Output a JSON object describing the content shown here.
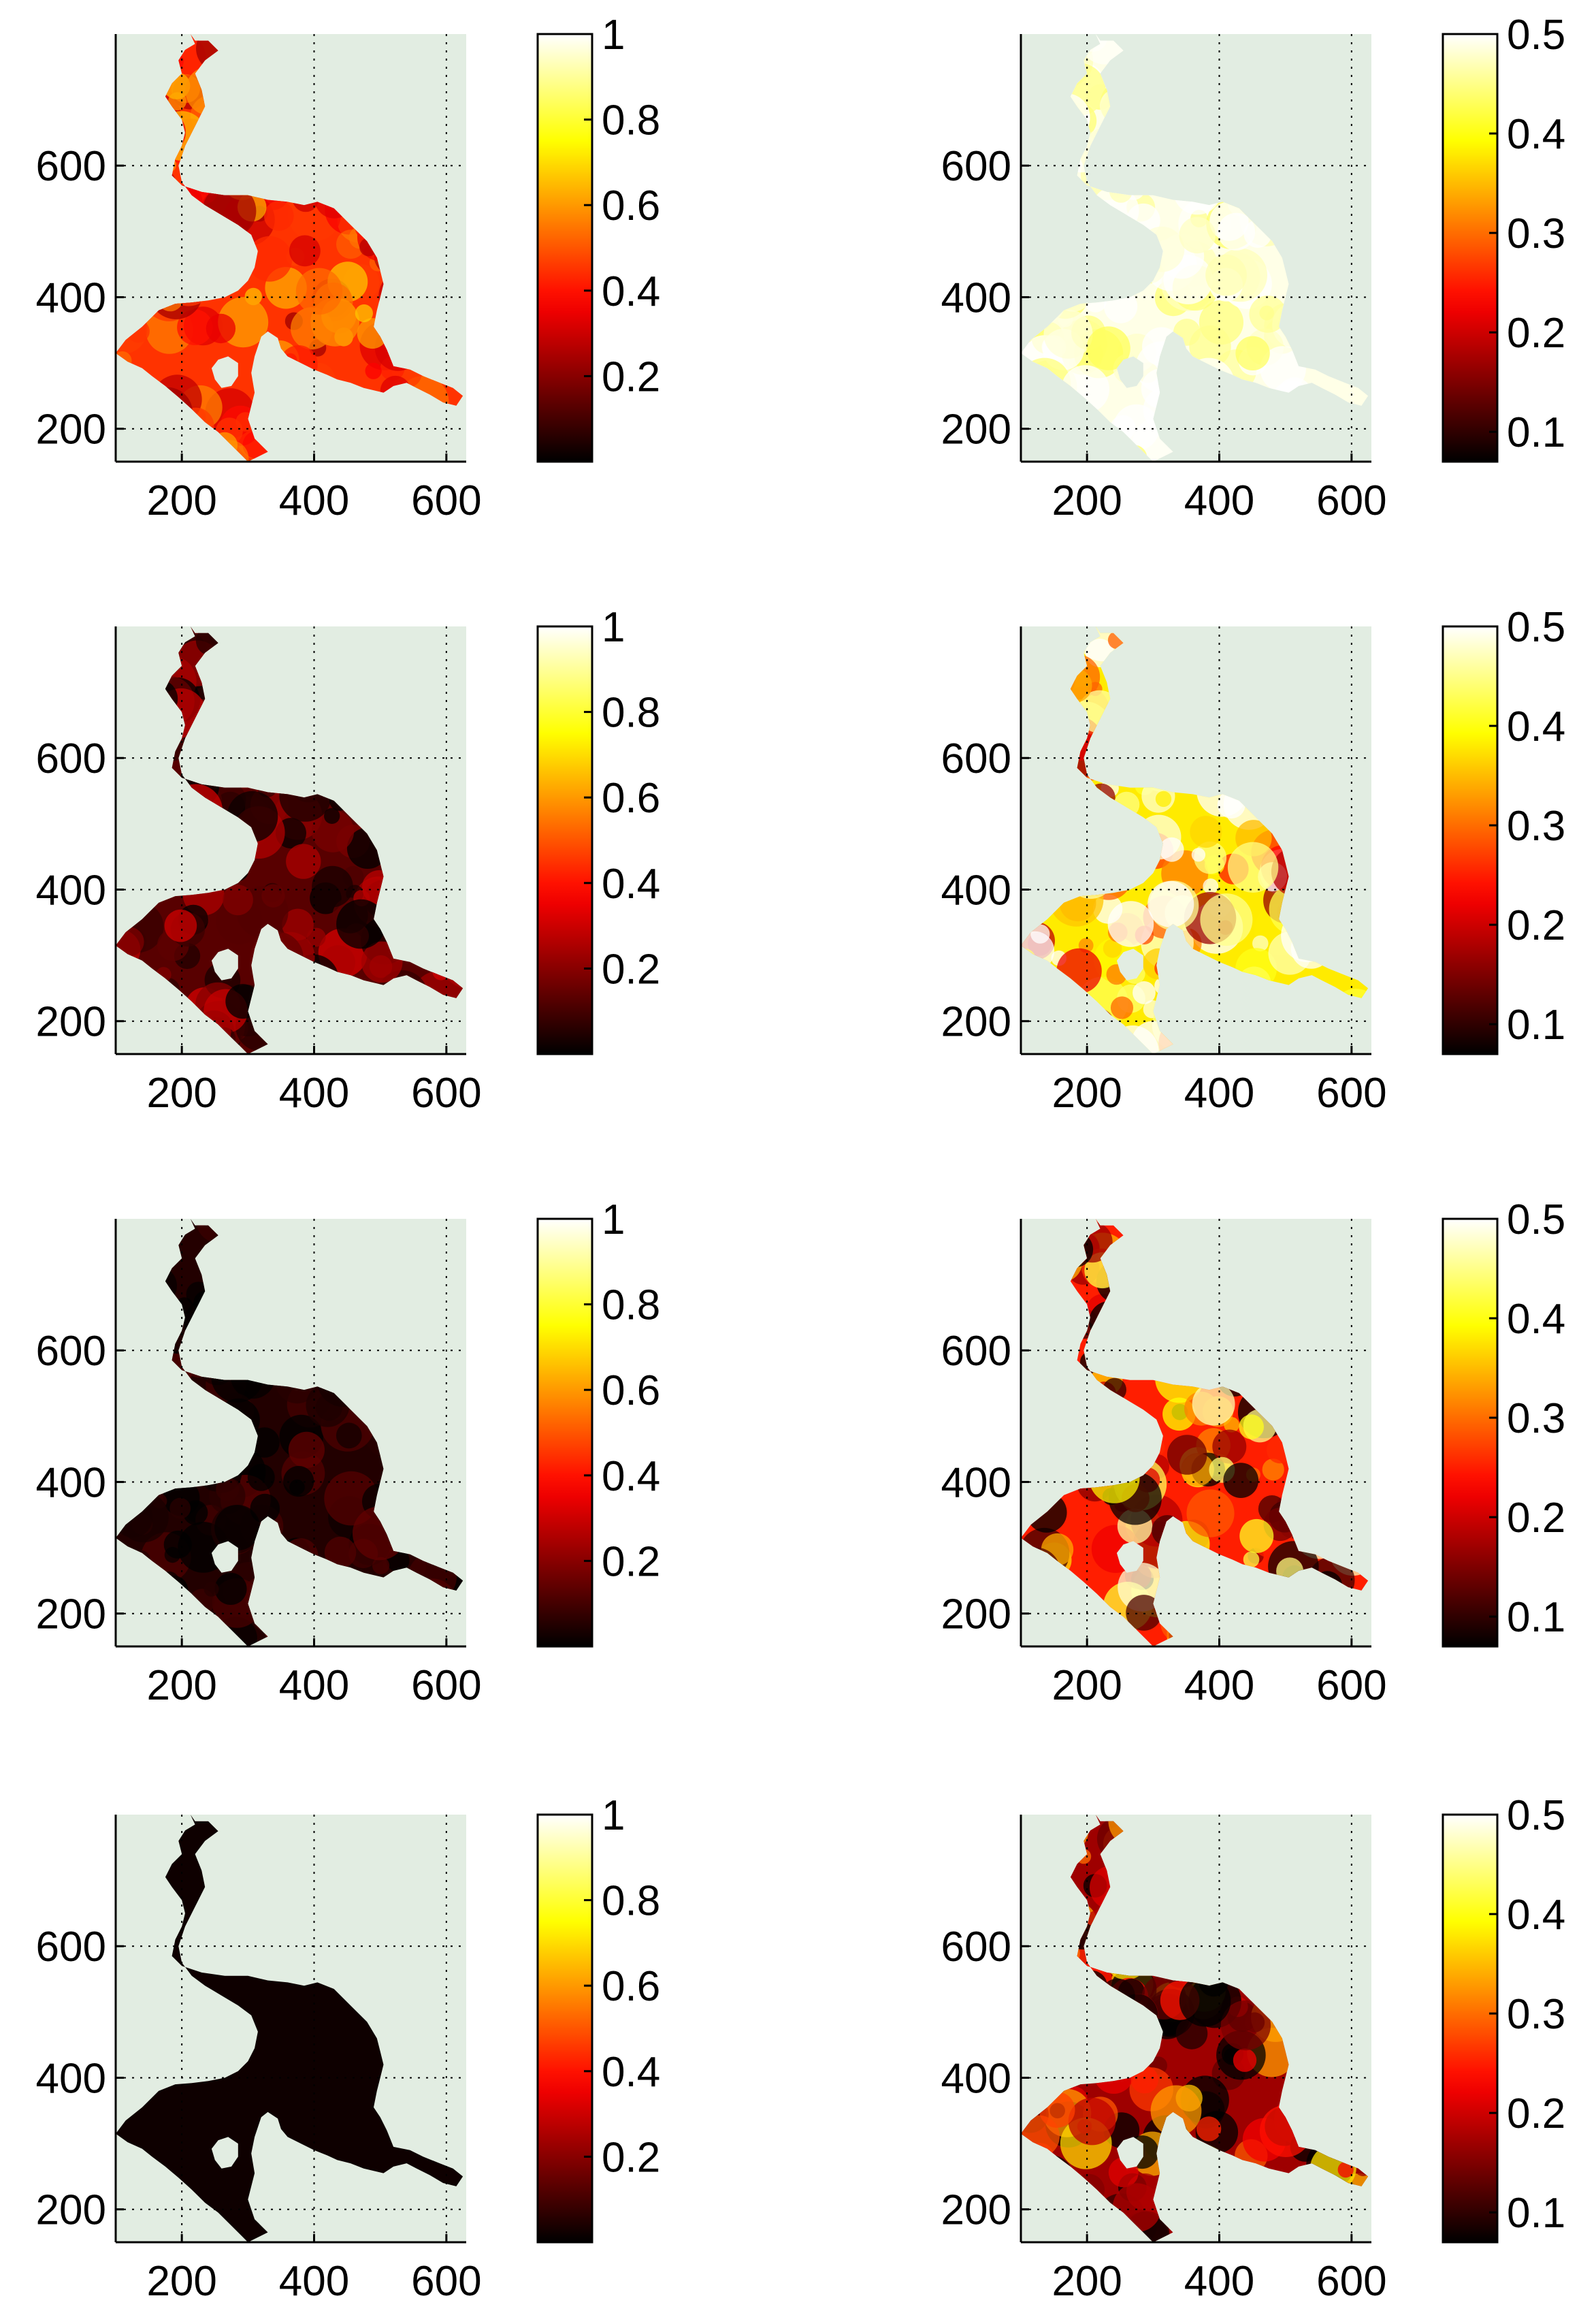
{
  "chart_data": [
    {
      "type": "heatmap",
      "panel": "row1-left",
      "xlim": [
        100,
        630
      ],
      "ylim": [
        150,
        800
      ],
      "xticks": [
        200,
        400,
        600
      ],
      "yticks": [
        200,
        400,
        600
      ],
      "grid": true,
      "background": "#e2ede2",
      "colormap": "hot",
      "clim": [
        0,
        1
      ],
      "colorbar_ticks": [
        "1",
        "0.8",
        "0.6",
        "0.4",
        "0.2"
      ],
      "colorbar_tick_values": [
        1,
        0.8,
        0.6,
        0.4,
        0.2
      ],
      "field_mean": 0.45,
      "field_spread": 0.14
    },
    {
      "type": "heatmap",
      "panel": "row1-right",
      "xlim": [
        100,
        630
      ],
      "ylim": [
        150,
        800
      ],
      "xticks": [
        200,
        400,
        600
      ],
      "yticks": [
        200,
        400,
        600
      ],
      "grid": true,
      "background": "#e2ede2",
      "colormap": "hot",
      "clim": [
        0.07,
        0.5
      ],
      "colorbar_ticks": [
        "0.5",
        "0.4",
        "0.3",
        "0.2",
        "0.1"
      ],
      "colorbar_tick_values": [
        0.5,
        0.4,
        0.3,
        0.2,
        0.1
      ],
      "field_mean": 0.49,
      "field_spread": 0.04
    },
    {
      "type": "heatmap",
      "panel": "row2-left",
      "xlim": [
        100,
        630
      ],
      "ylim": [
        150,
        800
      ],
      "xticks": [
        200,
        400,
        600
      ],
      "yticks": [
        200,
        400,
        600
      ],
      "grid": true,
      "background": "#e2ede2",
      "colormap": "hot",
      "clim": [
        0,
        1
      ],
      "colorbar_ticks": [
        "1",
        "0.8",
        "0.6",
        "0.4",
        "0.2"
      ],
      "colorbar_tick_values": [
        1,
        0.8,
        0.6,
        0.4,
        0.2
      ],
      "field_mean": 0.13,
      "field_spread": 0.12
    },
    {
      "type": "heatmap",
      "panel": "row2-right",
      "xlim": [
        100,
        630
      ],
      "ylim": [
        150,
        800
      ],
      "xticks": [
        200,
        400,
        600
      ],
      "yticks": [
        200,
        400,
        600
      ],
      "grid": true,
      "background": "#e2ede2",
      "colormap": "hot",
      "clim": [
        0.07,
        0.5
      ],
      "colorbar_ticks": [
        "0.5",
        "0.4",
        "0.3",
        "0.2",
        "0.1"
      ],
      "colorbar_tick_values": [
        0.5,
        0.4,
        0.3,
        0.2,
        0.1
      ],
      "field_mean": 0.38,
      "field_spread": 0.14
    },
    {
      "type": "heatmap",
      "panel": "row3-left",
      "xlim": [
        100,
        630
      ],
      "ylim": [
        150,
        800
      ],
      "xticks": [
        200,
        400,
        600
      ],
      "yticks": [
        200,
        400,
        600
      ],
      "grid": true,
      "background": "#e2ede2",
      "colormap": "hot",
      "clim": [
        0,
        1
      ],
      "colorbar_ticks": [
        "1",
        "0.8",
        "0.6",
        "0.4",
        "0.2"
      ],
      "colorbar_tick_values": [
        1,
        0.8,
        0.6,
        0.4,
        0.2
      ],
      "field_mean": 0.05,
      "field_spread": 0.06
    },
    {
      "type": "heatmap",
      "panel": "row3-right",
      "xlim": [
        100,
        630
      ],
      "ylim": [
        150,
        800
      ],
      "xticks": [
        200,
        400,
        600
      ],
      "yticks": [
        200,
        400,
        600
      ],
      "grid": true,
      "background": "#e2ede2",
      "colormap": "hot",
      "clim": [
        0.07,
        0.5
      ],
      "colorbar_ticks": [
        "0.5",
        "0.4",
        "0.3",
        "0.2",
        "0.1"
      ],
      "colorbar_tick_values": [
        0.5,
        0.4,
        0.3,
        0.2,
        0.1
      ],
      "field_mean": 0.25,
      "field_spread": 0.15
    },
    {
      "type": "heatmap",
      "panel": "row4-left",
      "xlim": [
        100,
        630
      ],
      "ylim": [
        150,
        800
      ],
      "xticks": [
        200,
        400,
        600
      ],
      "yticks": [
        200,
        400,
        600
      ],
      "grid": true,
      "background": "#e2ede2",
      "colormap": "hot",
      "clim": [
        0,
        1
      ],
      "colorbar_ticks": [
        "1",
        "0.8",
        "0.6",
        "0.4",
        "0.2"
      ],
      "colorbar_tick_values": [
        1,
        0.8,
        0.6,
        0.4,
        0.2
      ],
      "field_mean": 0.02,
      "field_spread": 0.0
    },
    {
      "type": "heatmap",
      "panel": "row4-right",
      "xlim": [
        100,
        630
      ],
      "ylim": [
        150,
        800
      ],
      "xticks": [
        200,
        400,
        600
      ],
      "yticks": [
        200,
        400,
        600
      ],
      "grid": true,
      "background": "#e2ede2",
      "colormap": "hot",
      "clim": [
        0.07,
        0.5
      ],
      "colorbar_ticks": [
        "0.5",
        "0.4",
        "0.3",
        "0.2",
        "0.1"
      ],
      "colorbar_tick_values": [
        0.5,
        0.4,
        0.3,
        0.2,
        0.1
      ],
      "field_mean": 0.17,
      "field_spread": 0.13
    }
  ],
  "region_outline": [
    [
      213,
      800
    ],
    [
      220,
      785
    ],
    [
      205,
      776
    ],
    [
      195,
      760
    ],
    [
      200,
      740
    ],
    [
      185,
      725
    ],
    [
      175,
      705
    ],
    [
      185,
      690
    ],
    [
      200,
      670
    ],
    [
      205,
      650
    ],
    [
      200,
      630
    ],
    [
      190,
      610
    ],
    [
      185,
      585
    ],
    [
      200,
      570
    ],
    [
      230,
      560
    ],
    [
      265,
      555
    ],
    [
      300,
      555
    ],
    [
      330,
      548
    ],
    [
      360,
      545
    ],
    [
      385,
      540
    ],
    [
      405,
      545
    ],
    [
      430,
      535
    ],
    [
      455,
      510
    ],
    [
      480,
      485
    ],
    [
      495,
      460
    ],
    [
      500,
      440
    ],
    [
      505,
      420
    ],
    [
      500,
      400
    ],
    [
      495,
      380
    ],
    [
      490,
      355
    ],
    [
      500,
      340
    ],
    [
      510,
      320
    ],
    [
      520,
      295
    ],
    [
      545,
      290
    ],
    [
      565,
      280
    ],
    [
      590,
      270
    ],
    [
      610,
      262
    ],
    [
      625,
      250
    ],
    [
      615,
      235
    ],
    [
      595,
      240
    ],
    [
      575,
      252
    ],
    [
      555,
      262
    ],
    [
      540,
      270
    ],
    [
      520,
      265
    ],
    [
      505,
      255
    ],
    [
      475,
      262
    ],
    [
      455,
      270
    ],
    [
      435,
      275
    ],
    [
      420,
      282
    ],
    [
      400,
      290
    ],
    [
      380,
      300
    ],
    [
      360,
      310
    ],
    [
      350,
      322
    ],
    [
      345,
      338
    ],
    [
      330,
      348
    ],
    [
      320,
      340
    ],
    [
      310,
      310
    ],
    [
      305,
      285
    ],
    [
      310,
      255
    ],
    [
      300,
      215
    ],
    [
      310,
      185
    ],
    [
      330,
      165
    ],
    [
      300,
      150
    ],
    [
      290,
      160
    ],
    [
      275,
      175
    ],
    [
      255,
      195
    ],
    [
      235,
      210
    ],
    [
      215,
      230
    ],
    [
      195,
      248
    ],
    [
      175,
      265
    ],
    [
      155,
      280
    ],
    [
      140,
      292
    ],
    [
      118,
      302
    ],
    [
      100,
      315
    ],
    [
      115,
      335
    ],
    [
      140,
      355
    ],
    [
      165,
      380
    ],
    [
      190,
      390
    ],
    [
      215,
      392
    ],
    [
      240,
      395
    ],
    [
      265,
      400
    ],
    [
      285,
      410
    ],
    [
      300,
      425
    ],
    [
      310,
      445
    ],
    [
      315,
      470
    ],
    [
      305,
      495
    ],
    [
      285,
      510
    ],
    [
      260,
      525
    ],
    [
      235,
      540
    ],
    [
      215,
      555
    ],
    [
      200,
      575
    ],
    [
      195,
      600
    ],
    [
      205,
      630
    ],
    [
      220,
      660
    ],
    [
      235,
      690
    ],
    [
      230,
      715
    ],
    [
      220,
      740
    ],
    [
      235,
      760
    ],
    [
      255,
      775
    ],
    [
      240,
      790
    ],
    [
      220,
      790
    ]
  ],
  "region_hole": [
    [
      255,
      305
    ],
    [
      270,
      310
    ],
    [
      285,
      300
    ],
    [
      285,
      280
    ],
    [
      275,
      265
    ],
    [
      260,
      262
    ],
    [
      250,
      275
    ],
    [
      245,
      292
    ]
  ]
}
